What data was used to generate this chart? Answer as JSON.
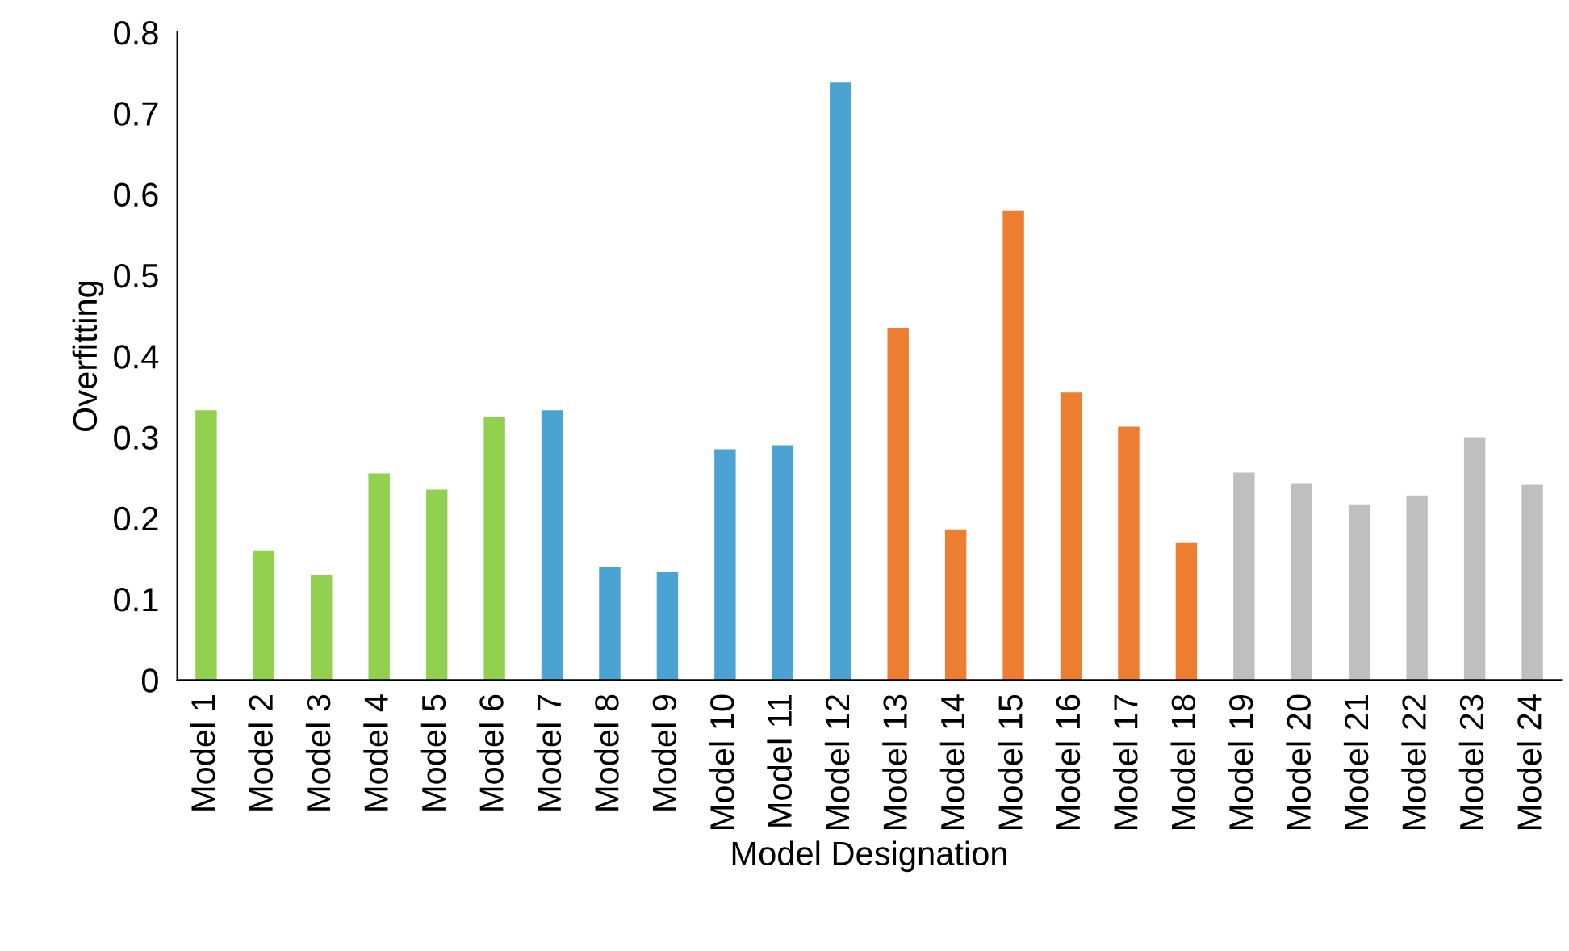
{
  "chart_data": {
    "type": "bar",
    "xlabel": "Model Designation",
    "ylabel": "Overfitting",
    "categories": [
      "Model 1",
      "Model 2",
      "Model 3",
      "Model 4",
      "Model 5",
      "Model 6",
      "Model 7",
      "Model 8",
      "Model 9",
      "Model 10",
      "Model 11",
      "Model 12",
      "Model 13",
      "Model 14",
      "Model 15",
      "Model 16",
      "Model 17",
      "Model 18",
      "Model 19",
      "Model 20",
      "Model 21",
      "Model 22",
      "Model 23",
      "Model 24"
    ],
    "values": [
      0.333,
      0.16,
      0.13,
      0.255,
      0.235,
      0.325,
      0.333,
      0.14,
      0.134,
      0.285,
      0.29,
      0.738,
      0.435,
      0.186,
      0.58,
      0.355,
      0.313,
      0.17,
      0.256,
      0.243,
      0.217,
      0.228,
      0.3,
      0.241
    ],
    "colors": [
      "#92d050",
      "#92d050",
      "#92d050",
      "#92d050",
      "#92d050",
      "#92d050",
      "#4ba3d3",
      "#4ba3d3",
      "#4ba3d3",
      "#4ba3d3",
      "#4ba3d3",
      "#4ba3d3",
      "#ed7d31",
      "#ed7d31",
      "#ed7d31",
      "#ed7d31",
      "#ed7d31",
      "#ed7d31",
      "#bfbfbf",
      "#bfbfbf",
      "#bfbfbf",
      "#bfbfbf",
      "#bfbfbf",
      "#bfbfbf"
    ],
    "ylim": [
      0,
      0.8
    ],
    "yticks": [
      0,
      0.1,
      0.2,
      0.3,
      0.4,
      0.5,
      0.6,
      0.7,
      0.8
    ],
    "grid": false,
    "legend": false
  }
}
